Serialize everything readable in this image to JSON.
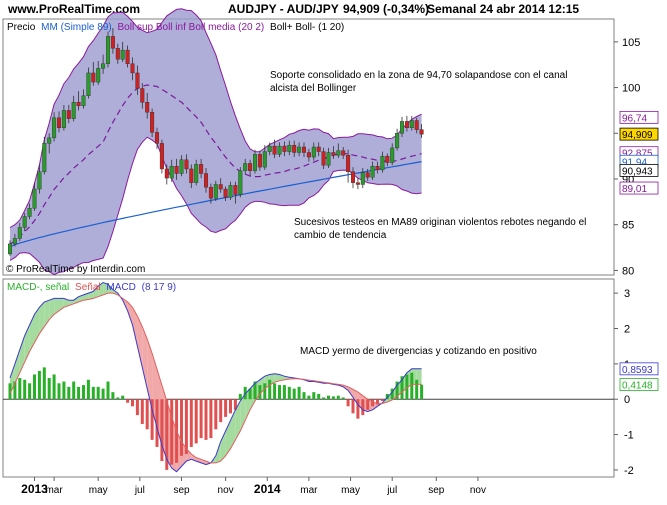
{
  "header": {
    "site": "www.ProRealTime.com",
    "instrument": "AUDJPY - AUD/JPY",
    "quote": "94,909 (-0,34%)",
    "period_info": "Semanal  24 abr 2014 12:15"
  },
  "colors": {
    "bollinger_band": "#8b1a9c",
    "bollinger_fill": "#9a9ad0",
    "bollinger_mid": "#7a1a9a",
    "ma89": "#1a5fd0",
    "candle_up": "#2a9a2a",
    "candle_down": "#d02020",
    "macd_up": "#28b028",
    "macd_down": "#e05050",
    "macd_line": "#3a3ad0",
    "signal_line": "#e06060",
    "macd_cloud_up": "#a6dba0",
    "macd_cloud_down": "#f0a8a8",
    "price_tag": "#ffd700"
  },
  "chart_data": [
    {
      "type": "candlestick",
      "legend": {
        "price": "Precio",
        "ma": "MM (Simple 89)",
        "boll": "Boll sup Boll inf Boll media (20 2)",
        "bollpct": "Boll+ Boll- (1 20)"
      },
      "copyright": "© ProRealTime by Interdin.com",
      "ylim": [
        79.5,
        107.5
      ],
      "yticks": [
        "80",
        "85",
        "90",
        "95",
        "100",
        "105"
      ],
      "price_labels": [
        "96,74",
        "94,909",
        "92,875",
        "91,94",
        "90,943",
        "89,01"
      ],
      "annotations": [
        "Soporte consolidado en la zona de 94,70 solapandose con el canal alcista del Bollinger",
        "Sucesivos testeos en MA89 originan violentos rebotes negando el cambio de tendencia"
      ],
      "x_labels": [
        "2013",
        "mar",
        "may",
        "jul",
        "sep",
        "nov",
        "2014",
        "mar",
        "may",
        "jul",
        "sep",
        "nov"
      ],
      "candles": [
        [
          81.8,
          82.9,
          81.6,
          83.3
        ],
        [
          82.9,
          83.5,
          82.6,
          84.0
        ],
        [
          83.5,
          84.7,
          83.2,
          85.2
        ],
        [
          84.7,
          85.9,
          84.3,
          86.3
        ],
        [
          85.9,
          86.8,
          85.6,
          87.3
        ],
        [
          86.8,
          88.9,
          86.5,
          89.6
        ],
        [
          88.9,
          90.8,
          88.4,
          91.6
        ],
        [
          90.8,
          93.9,
          90.5,
          94.6
        ],
        [
          93.9,
          94.5,
          92.8,
          95.0
        ],
        [
          94.5,
          96.7,
          94.1,
          97.3
        ],
        [
          96.7,
          95.6,
          95.1,
          97.4
        ],
        [
          95.6,
          97.5,
          95.3,
          98.1
        ],
        [
          97.5,
          96.6,
          96.1,
          98.1
        ],
        [
          96.6,
          98.4,
          96.3,
          99.1
        ],
        [
          98.4,
          98.0,
          97.5,
          99.6
        ],
        [
          98.0,
          99.1,
          97.7,
          99.8
        ],
        [
          99.1,
          101.6,
          98.8,
          102.2
        ],
        [
          101.6,
          100.6,
          100.2,
          102.8
        ],
        [
          100.6,
          102.1,
          100.3,
          102.9
        ],
        [
          102.1,
          102.6,
          101.5,
          103.6
        ],
        [
          102.6,
          105.6,
          102.2,
          106.1
        ],
        [
          105.6,
          104.3,
          103.7,
          106.5
        ],
        [
          104.3,
          103.1,
          102.6,
          104.8
        ],
        [
          103.1,
          104.1,
          102.8,
          105.0
        ],
        [
          104.1,
          102.6,
          102.2,
          104.6
        ],
        [
          102.6,
          101.6,
          100.8,
          103.3
        ],
        [
          101.6,
          99.9,
          99.2,
          102.4
        ],
        [
          99.9,
          98.4,
          97.7,
          100.5
        ],
        [
          98.4,
          97.3,
          96.6,
          99.4
        ],
        [
          97.3,
          95.1,
          94.6,
          97.7
        ],
        [
          95.1,
          93.9,
          93.3,
          95.6
        ],
        [
          93.9,
          91.1,
          90.6,
          94.3
        ],
        [
          91.1,
          90.1,
          89.4,
          91.6
        ],
        [
          90.1,
          91.4,
          89.7,
          92.1
        ],
        [
          91.4,
          90.6,
          89.9,
          92.2
        ],
        [
          90.6,
          92.1,
          90.3,
          92.6
        ],
        [
          92.1,
          91.1,
          90.6,
          92.7
        ],
        [
          91.1,
          89.6,
          89.0,
          91.6
        ],
        [
          89.6,
          91.6,
          89.3,
          92.1
        ],
        [
          91.6,
          90.6,
          90.1,
          92.2
        ],
        [
          90.6,
          89.1,
          88.5,
          91.2
        ],
        [
          89.1,
          87.9,
          87.3,
          89.5
        ],
        [
          87.9,
          89.4,
          87.6,
          89.8
        ],
        [
          89.4,
          88.9,
          88.5,
          90.1
        ],
        [
          88.9,
          88.0,
          87.6,
          89.2
        ],
        [
          88.0,
          89.3,
          87.7,
          89.7
        ],
        [
          89.3,
          88.3,
          87.3,
          89.7
        ],
        [
          88.3,
          90.9,
          88.0,
          91.3
        ],
        [
          90.9,
          91.7,
          90.5,
          92.2
        ],
        [
          91.7,
          90.9,
          90.4,
          92.1
        ],
        [
          90.9,
          92.7,
          90.6,
          93.2
        ],
        [
          92.7,
          91.3,
          90.9,
          93.1
        ],
        [
          91.3,
          93.0,
          91.0,
          93.7
        ],
        [
          93.0,
          93.6,
          92.6,
          94.0
        ],
        [
          93.6,
          92.7,
          92.3,
          94.3
        ],
        [
          92.7,
          93.6,
          92.4,
          94.0
        ],
        [
          93.6,
          93.0,
          92.5,
          94.1
        ],
        [
          93.0,
          93.7,
          92.6,
          94.2
        ],
        [
          93.7,
          92.9,
          92.4,
          94.2
        ],
        [
          92.9,
          93.5,
          92.5,
          94.0
        ],
        [
          93.5,
          92.9,
          92.4,
          94.0
        ],
        [
          92.9,
          92.4,
          91.9,
          93.3
        ],
        [
          92.4,
          93.5,
          92.0,
          94.0
        ],
        [
          93.5,
          93.0,
          92.5,
          94.0
        ],
        [
          93.0,
          91.5,
          91.1,
          93.4
        ],
        [
          91.5,
          92.9,
          91.2,
          93.4
        ],
        [
          92.9,
          92.6,
          92.2,
          93.6
        ],
        [
          92.6,
          93.1,
          92.3,
          93.9
        ],
        [
          93.1,
          92.6,
          92.2,
          93.5
        ],
        [
          92.6,
          90.8,
          89.6,
          93.2
        ],
        [
          90.8,
          89.6,
          89.0,
          91.3
        ],
        [
          89.6,
          89.4,
          88.9,
          90.1
        ],
        [
          89.4,
          90.7,
          89.0,
          91.2
        ],
        [
          90.7,
          90.2,
          89.8,
          91.1
        ],
        [
          90.2,
          91.4,
          89.9,
          91.9
        ],
        [
          91.4,
          91.0,
          90.6,
          91.9
        ],
        [
          91.0,
          92.5,
          90.7,
          93.0
        ],
        [
          92.5,
          91.8,
          91.4,
          92.8
        ],
        [
          91.8,
          93.4,
          91.5,
          93.9
        ],
        [
          93.4,
          95.0,
          93.1,
          95.5
        ],
        [
          95.0,
          96.3,
          94.6,
          96.8
        ],
        [
          96.3,
          95.6,
          95.2,
          96.9
        ],
        [
          95.6,
          96.4,
          95.3,
          96.9
        ],
        [
          96.4,
          95.4,
          95.0,
          96.7
        ],
        [
          95.4,
          94.909,
          94.5,
          96.0
        ]
      ]
    },
    {
      "type": "histogram",
      "legend": {
        "a": "MACD-, señal",
        "b": "Señal",
        "c": "MACD",
        "d": "(8 17 9)"
      },
      "ylim": [
        -2.2,
        3.4
      ],
      "yticks": [
        "3",
        "2",
        "1",
        "0",
        "-1",
        "-2"
      ],
      "value_labels": [
        "0,8593",
        "0,4148"
      ],
      "annotation": "MACD yermo de divergencias y cotizando en positivo",
      "histogram": [
        0.45,
        0.5,
        0.6,
        0.55,
        0.45,
        0.7,
        0.8,
        0.9,
        0.6,
        0.7,
        0.45,
        0.5,
        0.35,
        0.5,
        0.35,
        0.4,
        0.55,
        0.35,
        0.35,
        0.3,
        0.5,
        0.2,
        0.05,
        0.1,
        -0.1,
        -0.2,
        -0.45,
        -0.7,
        -0.85,
        -1.15,
        -1.35,
        -1.75,
        -2.0,
        -1.85,
        -1.8,
        -1.6,
        -1.55,
        -1.35,
        -1.25,
        -1.1,
        -1.15,
        -1.1,
        -0.85,
        -0.65,
        -0.5,
        -0.4,
        -0.3,
        0.15,
        0.35,
        0.3,
        0.5,
        0.4,
        0.45,
        0.55,
        0.45,
        0.4,
        0.4,
        0.35,
        0.3,
        0.35,
        0.2,
        0.1,
        0.2,
        0.15,
        0.05,
        0.1,
        0.08,
        0.1,
        0.05,
        -0.2,
        -0.4,
        -0.55,
        -0.45,
        -0.3,
        -0.2,
        -0.15,
        -0.05,
        0.15,
        0.3,
        0.5,
        0.65,
        0.7,
        0.75,
        0.55,
        0.41
      ],
      "macd": [
        0.6,
        1.0,
        1.4,
        1.8,
        2.1,
        2.4,
        2.6,
        2.75,
        2.8,
        2.85,
        2.85,
        2.85,
        2.8,
        2.8,
        2.9,
        2.95,
        3.0,
        3.05,
        3.2,
        3.3,
        3.25,
        3.1,
        3.0,
        2.8,
        2.5,
        2.1,
        1.5,
        0.9,
        0.3,
        -0.3,
        -0.8,
        -1.3,
        -1.7,
        -1.95,
        -2.05,
        -1.9,
        -1.75,
        -1.7,
        -1.75,
        -1.8,
        -1.85,
        -1.8,
        -1.6,
        -1.2,
        -0.9,
        -0.6,
        -0.3,
        -0.05,
        0.15,
        0.3,
        0.45,
        0.55,
        0.65,
        0.7,
        0.72,
        0.7,
        0.65,
        0.62,
        0.6,
        0.58,
        0.55,
        0.5,
        0.5,
        0.48,
        0.45,
        0.45,
        0.42,
        0.4,
        0.35,
        0.25,
        0.05,
        -0.15,
        -0.3,
        -0.35,
        -0.3,
        -0.2,
        -0.1,
        0.05,
        0.2,
        0.4,
        0.55,
        0.75,
        0.86,
        0.86,
        0.86
      ],
      "signal": [
        0.15,
        0.45,
        0.75,
        1.05,
        1.35,
        1.6,
        1.85,
        2.05,
        2.25,
        2.4,
        2.5,
        2.6,
        2.65,
        2.7,
        2.75,
        2.8,
        2.82,
        2.85,
        2.9,
        2.95,
        3.0,
        3.0,
        2.95,
        2.85,
        2.75,
        2.6,
        2.35,
        2.05,
        1.7,
        1.3,
        0.85,
        0.4,
        -0.05,
        -0.5,
        -0.9,
        -1.2,
        -1.4,
        -1.55,
        -1.65,
        -1.7,
        -1.75,
        -1.8,
        -1.8,
        -1.75,
        -1.6,
        -1.4,
        -1.15,
        -0.9,
        -0.6,
        -0.3,
        -0.05,
        0.15,
        0.3,
        0.4,
        0.48,
        0.52,
        0.55,
        0.57,
        0.58,
        0.58,
        0.56,
        0.54,
        0.52,
        0.5,
        0.48,
        0.46,
        0.44,
        0.42,
        0.4,
        0.35,
        0.28,
        0.2,
        0.1,
        0.0,
        -0.08,
        -0.12,
        -0.12,
        -0.08,
        -0.02,
        0.08,
        0.2,
        0.32,
        0.42,
        0.42,
        0.42
      ]
    }
  ]
}
